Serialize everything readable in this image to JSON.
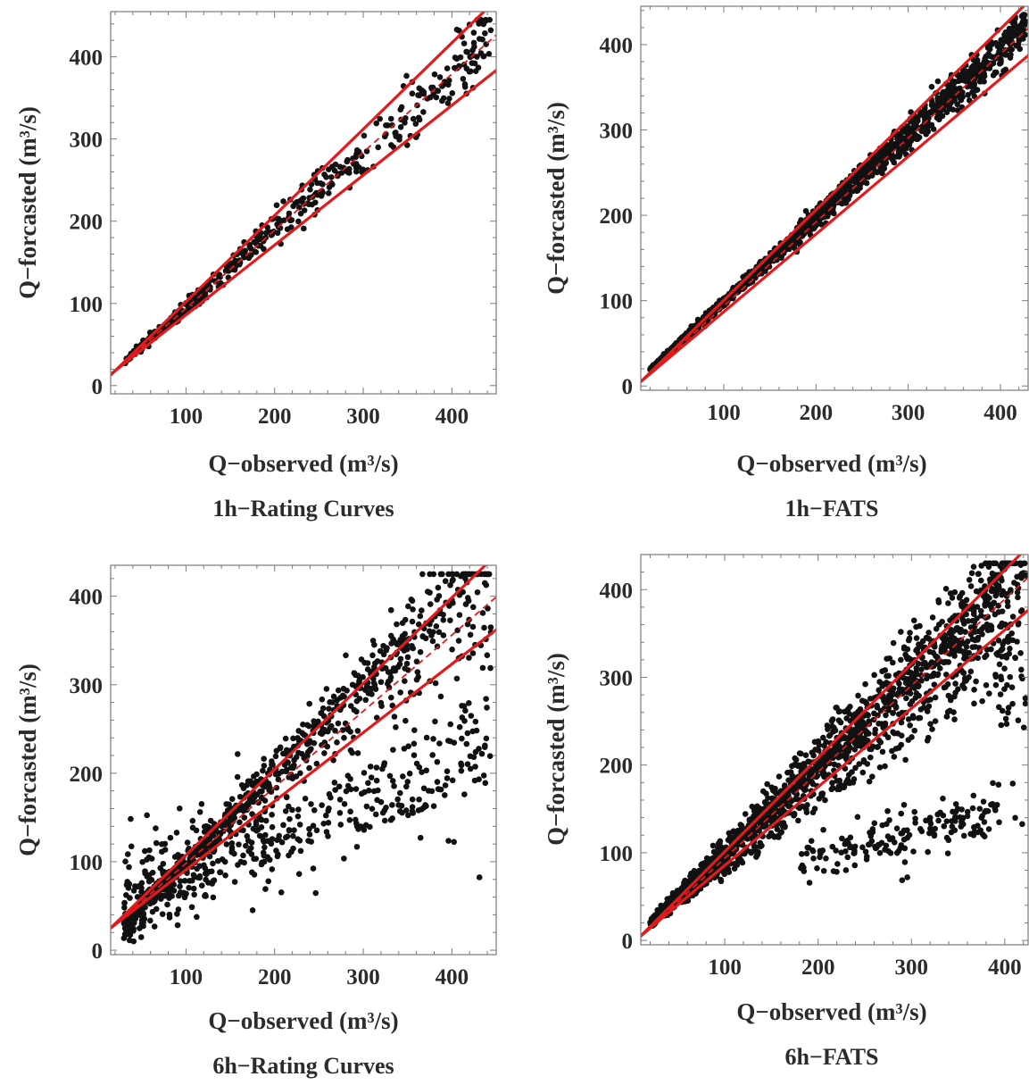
{
  "chart_data": [
    {
      "type": "scatter",
      "title": "1h−Rating Curves",
      "xlabel": "Q−observed (m³/s)",
      "ylabel": "Q−forcasted (m³/s)",
      "xlim": [
        15,
        450
      ],
      "ylim": [
        -10,
        455
      ],
      "xticks": [
        100,
        200,
        300,
        400
      ],
      "yticks": [
        0,
        100,
        200,
        300,
        400
      ],
      "grid": false,
      "lines": {
        "center_slope": 0.95,
        "upper_slope": 1.05,
        "lower_slope": 0.85,
        "intercept": 0,
        "pivot_x": 20,
        "pivot_y": 18,
        "color": "#e31a1c"
      },
      "scatter_pattern": {
        "kind": "tight",
        "n": 420,
        "x_range": [
          30,
          445
        ],
        "slope": 0.95,
        "spread": 0.05
      }
    },
    {
      "type": "scatter",
      "title": "1h−FATS",
      "xlabel": "Q−observed (m³/s)",
      "ylabel": "Q−forcasted (m³/s)",
      "xlim": [
        10,
        430
      ],
      "ylim": [
        -5,
        445
      ],
      "xticks": [
        100,
        200,
        300,
        400
      ],
      "yticks": [
        0,
        100,
        200,
        300,
        400
      ],
      "grid": false,
      "lines": {
        "center_slope": 0.985,
        "upper_slope": 1.06,
        "lower_slope": 0.91,
        "pivot_x": 10,
        "pivot_y": 5,
        "color": "#e31a1c"
      },
      "scatter_pattern": {
        "kind": "dense",
        "n": 1400,
        "x_range": [
          20,
          428
        ],
        "slope": 0.985,
        "spread": 0.03
      }
    },
    {
      "type": "scatter",
      "title": "6h−Rating Curves",
      "xlabel": "Q−observed (m³/s)",
      "ylabel": "Q−forcasted (m³/s)",
      "xlim": [
        15,
        450
      ],
      "ylim": [
        -5,
        435
      ],
      "xticks": [
        100,
        200,
        300,
        400
      ],
      "yticks": [
        0,
        100,
        200,
        300,
        400
      ],
      "grid": false,
      "lines": {
        "center_slope": 0.86,
        "upper_slope": 0.97,
        "lower_slope": 0.775,
        "pivot_x": 15,
        "pivot_y": 25,
        "color": "#e31a1c"
      },
      "scatter_pattern": {
        "kind": "wide",
        "n": 1200,
        "x_range": [
          30,
          445
        ],
        "slope": 0.97,
        "spread": 0.18
      }
    },
    {
      "type": "scatter",
      "title": "6h−FATS",
      "xlabel": "Q−observed (m³/s)",
      "ylabel": "Q−forcasted (m³/s)",
      "xlim": [
        10,
        425
      ],
      "ylim": [
        -5,
        440
      ],
      "xticks": [
        100,
        200,
        300,
        400
      ],
      "yticks": [
        0,
        100,
        200,
        300,
        400
      ],
      "grid": false,
      "lines": {
        "center_slope": 0.985,
        "upper_slope": 1.07,
        "lower_slope": 0.895,
        "pivot_x": 10,
        "pivot_y": 5,
        "color": "#e31a1c"
      },
      "scatter_pattern": {
        "kind": "loops",
        "n": 1800,
        "x_range": [
          20,
          423
        ],
        "slope": 0.985,
        "spread": 0.06
      }
    }
  ]
}
